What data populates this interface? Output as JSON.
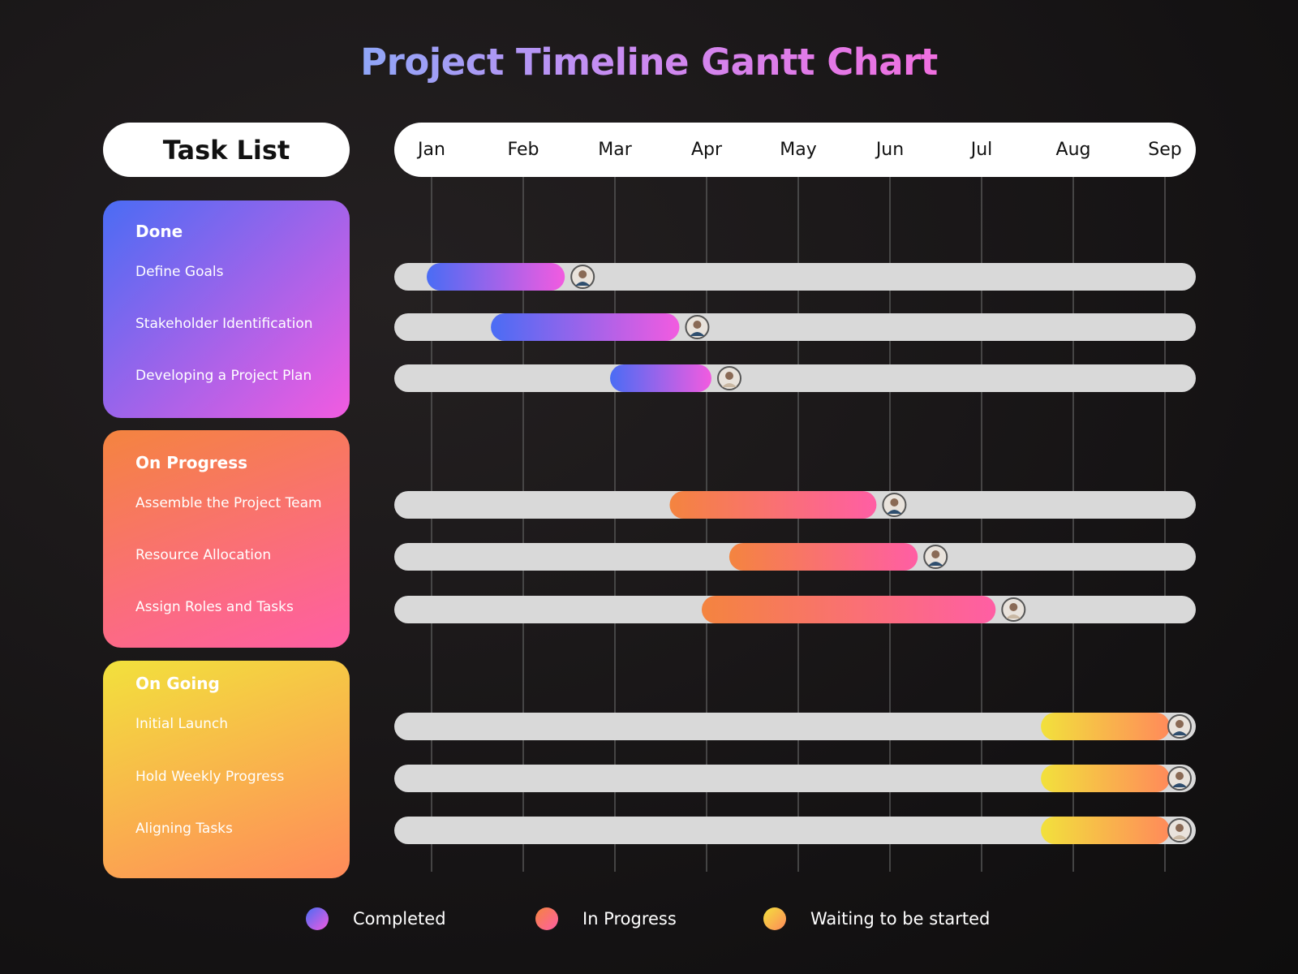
{
  "title": "Project Timeline Gantt Chart",
  "task_list_label": "Task List",
  "colors": {
    "done_start": "#4a6cf4",
    "done_end": "#f25be0",
    "progress_start": "#f4843f",
    "progress_end": "#ff5ea4",
    "going_start": "#f2e13c",
    "going_end": "#ff8a5a",
    "track": "#d9d9d9",
    "grid": "#555555"
  },
  "groups": [
    {
      "name": "Done",
      "tasks": [
        "Define Goals",
        "Stakeholder Identification",
        "Developing a Project Plan"
      ]
    },
    {
      "name": "On Progress",
      "tasks": [
        "Assemble the Project Team",
        "Resource Allocation",
        "Assign Roles and Tasks"
      ]
    },
    {
      "name": "On Going",
      "tasks": [
        "Initial Launch",
        "Hold Weekly Progress",
        "Aligning Tasks"
      ]
    }
  ],
  "legend": [
    {
      "label": "Completed",
      "icon": "purple-gradient-dot"
    },
    {
      "label": "In Progress",
      "icon": "coral-gradient-dot"
    },
    {
      "label": "Waiting to be started",
      "icon": "yellow-gradient-dot"
    }
  ],
  "chart_data": {
    "type": "bar",
    "title": "Project Timeline Gantt Chart",
    "categories": [
      "Jan",
      "Feb",
      "Mar",
      "Apr",
      "May",
      "Jun",
      "Jul",
      "Aug",
      "Sep"
    ],
    "xlim": [
      0,
      8
    ],
    "series": [
      {
        "name": "Completed",
        "status": "done",
        "tasks": [
          {
            "task": "Define Goals",
            "start": 0.0,
            "end": 1.4
          },
          {
            "task": "Stakeholder Identification",
            "start": 0.7,
            "end": 2.65
          },
          {
            "task": "Developing a Project Plan",
            "start": 2.0,
            "end": 3.0
          }
        ]
      },
      {
        "name": "In Progress",
        "status": "progress",
        "tasks": [
          {
            "task": "Assemble the Project Team",
            "start": 2.65,
            "end": 4.8
          },
          {
            "task": "Resource Allocation",
            "start": 3.3,
            "end": 5.25
          },
          {
            "task": "Assign Roles and Tasks",
            "start": 3.0,
            "end": 6.1
          }
        ]
      },
      {
        "name": "Waiting to be started",
        "status": "going",
        "tasks": [
          {
            "task": "Initial Launch",
            "start": 6.7,
            "end": 8.0
          },
          {
            "task": "Hold Weekly Progress",
            "start": 6.7,
            "end": 8.0
          },
          {
            "task": "Aligning Tasks",
            "start": 6.7,
            "end": 8.0
          }
        ]
      }
    ]
  }
}
